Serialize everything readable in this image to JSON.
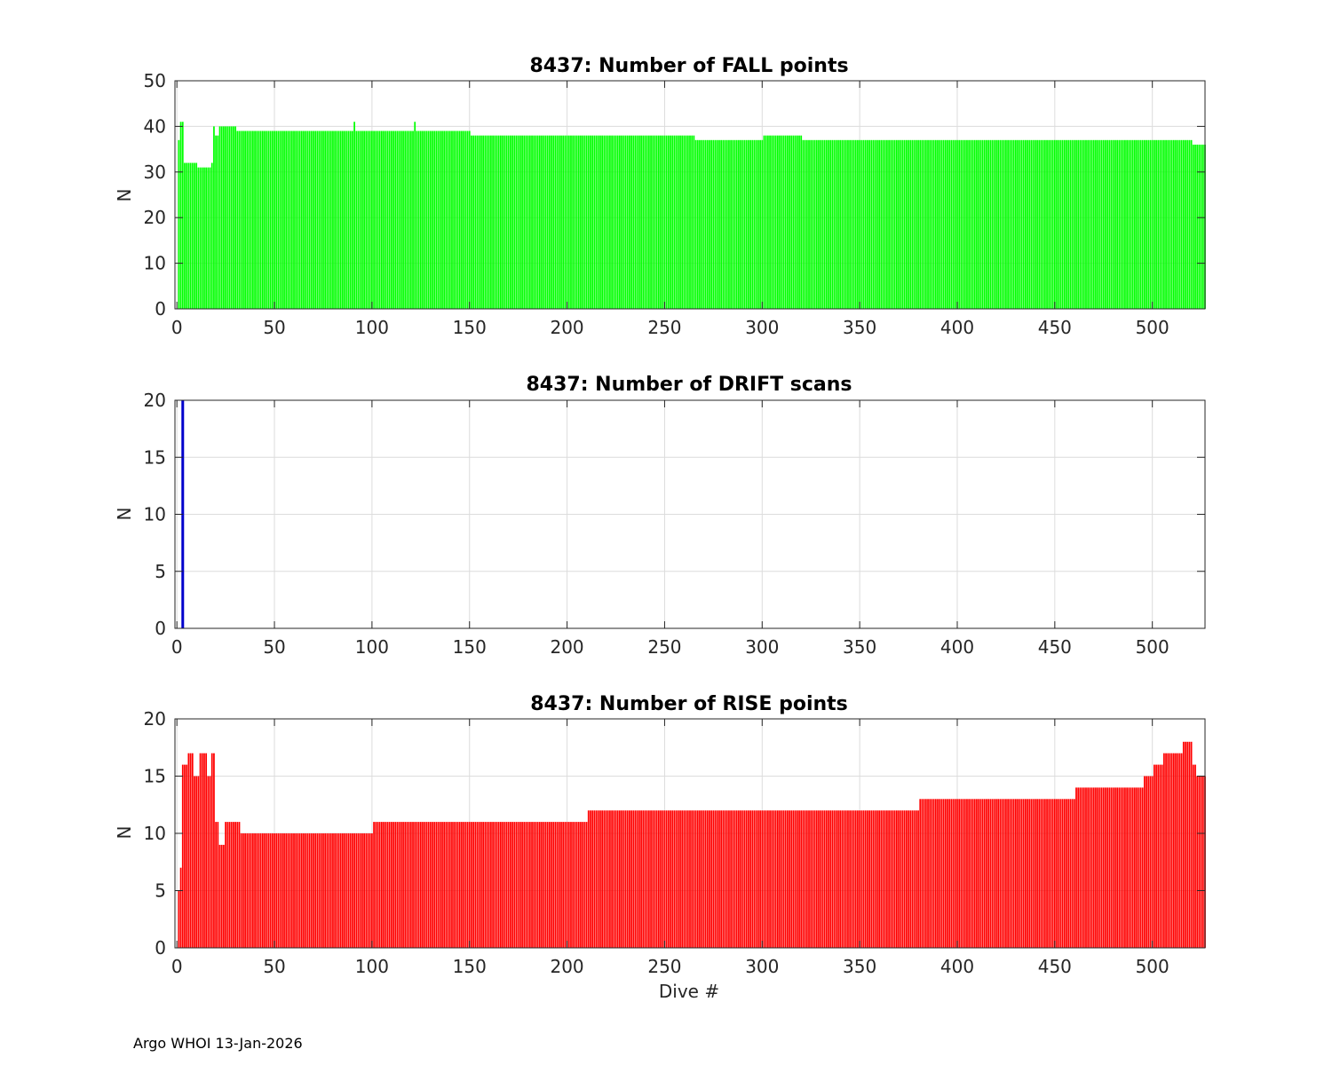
{
  "figure": {
    "footer": "Argo WHOI 13-Jan-2026",
    "xlabel": "Dive #"
  },
  "chart_data": [
    {
      "type": "bar",
      "title": "8437: Number of FALL points",
      "xlabel": "",
      "ylabel": "N",
      "color": "#00ff00",
      "xlim": [
        -1,
        527
      ],
      "ylim": [
        0,
        50
      ],
      "xticks": [
        0,
        50,
        100,
        150,
        200,
        250,
        300,
        350,
        400,
        450,
        500
      ],
      "yticks": [
        0,
        10,
        20,
        30,
        40,
        50
      ],
      "grid": true,
      "x_start": 1,
      "segments": [
        {
          "from": 1,
          "to": 1,
          "value": 37
        },
        {
          "from": 2,
          "to": 3,
          "value": 41
        },
        {
          "from": 4,
          "to": 10,
          "value": 32
        },
        {
          "from": 11,
          "to": 17,
          "value": 31
        },
        {
          "from": 18,
          "to": 18,
          "value": 32
        },
        {
          "from": 19,
          "to": 19,
          "value": 40
        },
        {
          "from": 20,
          "to": 21,
          "value": 38
        },
        {
          "from": 22,
          "to": 30,
          "value": 40
        },
        {
          "from": 31,
          "to": 90,
          "value": 39
        },
        {
          "from": 91,
          "to": 91,
          "value": 41
        },
        {
          "from": 92,
          "to": 121,
          "value": 39
        },
        {
          "from": 122,
          "to": 122,
          "value": 41
        },
        {
          "from": 123,
          "to": 150,
          "value": 39
        },
        {
          "from": 151,
          "to": 170,
          "value": 38
        },
        {
          "from": 171,
          "to": 240,
          "value": 38
        },
        {
          "from": 241,
          "to": 265,
          "value": 38
        },
        {
          "from": 266,
          "to": 300,
          "value": 37
        },
        {
          "from": 301,
          "to": 320,
          "value": 38
        },
        {
          "from": 321,
          "to": 520,
          "value": 37
        },
        {
          "from": 521,
          "to": 527,
          "value": 36
        }
      ]
    },
    {
      "type": "bar",
      "title": "8437: Number of DRIFT scans",
      "xlabel": "",
      "ylabel": "N",
      "color": "#0000cc",
      "xlim": [
        -1,
        527
      ],
      "ylim": [
        0,
        20
      ],
      "xticks": [
        0,
        50,
        100,
        150,
        200,
        250,
        300,
        350,
        400,
        450,
        500
      ],
      "yticks": [
        0,
        5,
        10,
        15,
        20
      ],
      "grid": true,
      "x_start": 1,
      "segments": [
        {
          "from": 3,
          "to": 3,
          "value": 20
        }
      ]
    },
    {
      "type": "bar",
      "title": "8437: Number of RISE points",
      "xlabel": "Dive #",
      "ylabel": "N",
      "color": "#ff0000",
      "xlim": [
        -1,
        527
      ],
      "ylim": [
        0,
        20
      ],
      "xticks": [
        0,
        50,
        100,
        150,
        200,
        250,
        300,
        350,
        400,
        450,
        500
      ],
      "yticks": [
        0,
        5,
        10,
        15,
        20
      ],
      "grid": true,
      "x_start": 1,
      "segments": [
        {
          "from": 1,
          "to": 1,
          "value": 5
        },
        {
          "from": 2,
          "to": 2,
          "value": 7
        },
        {
          "from": 3,
          "to": 5,
          "value": 16
        },
        {
          "from": 6,
          "to": 8,
          "value": 17
        },
        {
          "from": 9,
          "to": 11,
          "value": 15
        },
        {
          "from": 12,
          "to": 15,
          "value": 17
        },
        {
          "from": 16,
          "to": 17,
          "value": 15
        },
        {
          "from": 18,
          "to": 19,
          "value": 17
        },
        {
          "from": 20,
          "to": 21,
          "value": 11
        },
        {
          "from": 22,
          "to": 24,
          "value": 9
        },
        {
          "from": 25,
          "to": 32,
          "value": 11
        },
        {
          "from": 33,
          "to": 100,
          "value": 10
        },
        {
          "from": 101,
          "to": 120,
          "value": 11
        },
        {
          "from": 121,
          "to": 170,
          "value": 11
        },
        {
          "from": 171,
          "to": 210,
          "value": 11
        },
        {
          "from": 211,
          "to": 300,
          "value": 12
        },
        {
          "from": 301,
          "to": 330,
          "value": 12
        },
        {
          "from": 331,
          "to": 380,
          "value": 12
        },
        {
          "from": 381,
          "to": 460,
          "value": 13
        },
        {
          "from": 461,
          "to": 480,
          "value": 14
        },
        {
          "from": 481,
          "to": 495,
          "value": 14
        },
        {
          "from": 496,
          "to": 500,
          "value": 15
        },
        {
          "from": 501,
          "to": 505,
          "value": 16
        },
        {
          "from": 506,
          "to": 515,
          "value": 17
        },
        {
          "from": 516,
          "to": 520,
          "value": 18
        },
        {
          "from": 521,
          "to": 522,
          "value": 16
        },
        {
          "from": 523,
          "to": 527,
          "value": 15
        }
      ]
    }
  ]
}
